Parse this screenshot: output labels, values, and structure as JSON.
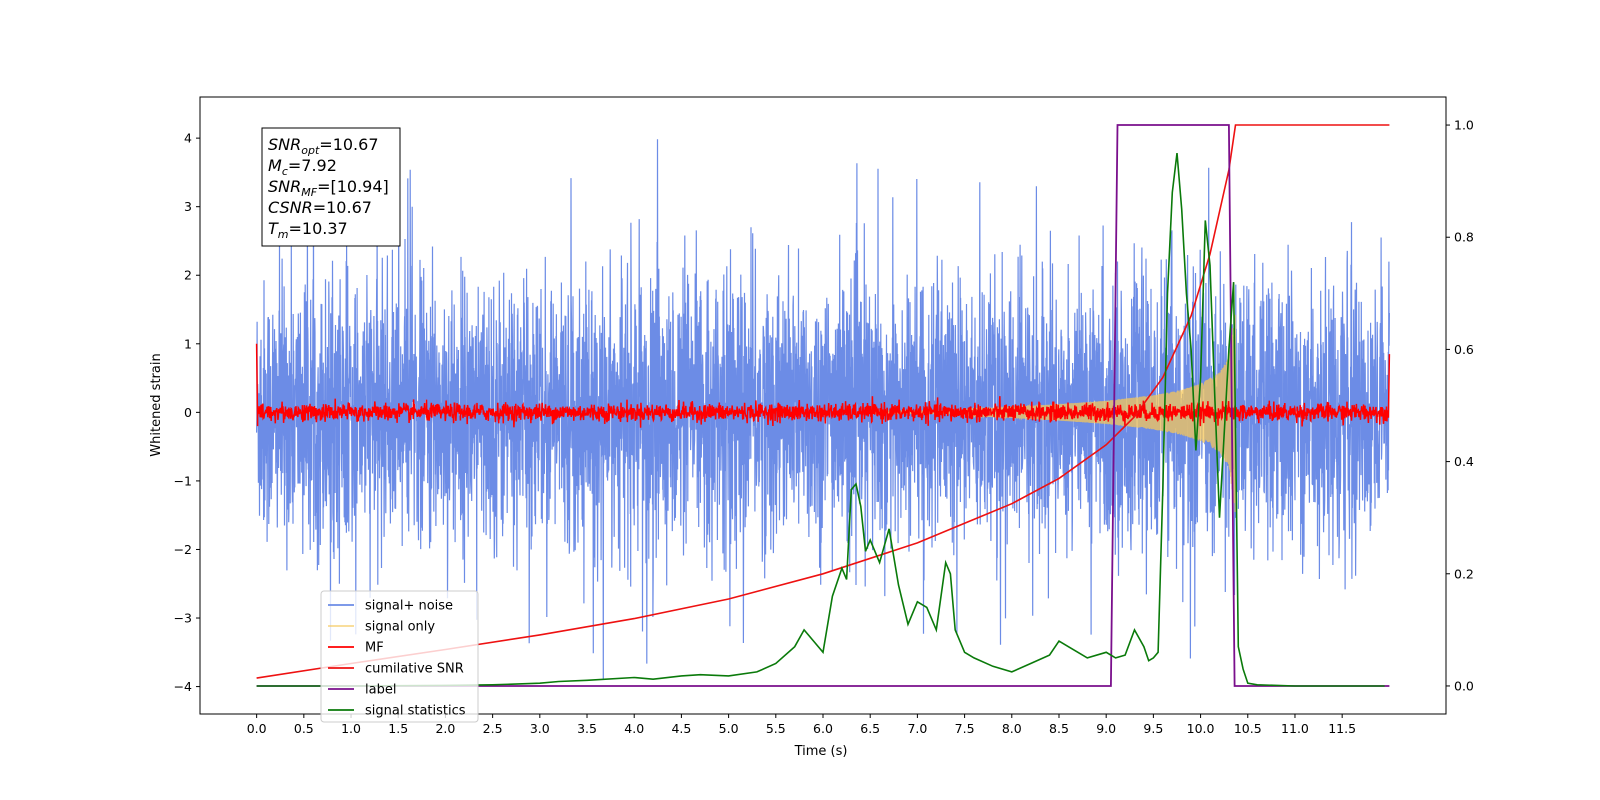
{
  "chart_data": {
    "type": "line",
    "title": "",
    "xlabel": "Time (s)",
    "ylabel": "Whitened strain",
    "xlim": [
      -0.6,
      12.6
    ],
    "ylim": [
      -4.4,
      4.6
    ],
    "y2lim": [
      -0.05,
      1.05
    ],
    "grid": false,
    "x_ticks": [
      "0.0",
      "0.5",
      "1.0",
      "1.5",
      "2.0",
      "2.5",
      "3.0",
      "3.5",
      "4.0",
      "4.5",
      "5.0",
      "5.5",
      "6.0",
      "6.5",
      "7.0",
      "7.5",
      "8.0",
      "8.5",
      "9.0",
      "9.5",
      "10.0",
      "10.5",
      "11.0",
      "11.5"
    ],
    "y_ticks": [
      "4",
      "3",
      "2",
      "1",
      "0",
      "−1",
      "−2",
      "−3",
      "−4"
    ],
    "y2_ticks": [
      "1.0",
      "0.8",
      "0.6",
      "0.4",
      "0.2",
      "0.0"
    ],
    "colors": {
      "signal_noise": "#6c8ce6",
      "signal_only": "#f5c75a",
      "mf": "#ff0000",
      "cumulative_snr": "#ee1111",
      "label": "#7a0f8c",
      "signal_statistics": "#0a7a0a"
    },
    "legend": {
      "placement": "lower-left",
      "entries": [
        "signal+ noise",
        "signal only",
        "MF",
        "cumilative SNR",
        "label",
        "signal statistics"
      ]
    },
    "annotation": {
      "snr_opt": {
        "base": "SNR",
        "sub": "opt",
        "value": "=10.67"
      },
      "mc": {
        "base": "M",
        "sub": "c",
        "value": "=7.92"
      },
      "snr_mf": {
        "base": "SNR",
        "sub": "MF",
        "value": "=[10.94]"
      },
      "csnr": {
        "base": "CSNR",
        "sub": "",
        "value": "=10.67"
      },
      "tm": {
        "base": "T",
        "sub": "m",
        "value": "=10.37"
      }
    },
    "series": [
      {
        "name": "signal+ noise",
        "axis": "left",
        "x_range": [
          0.0,
          12.0
        ],
        "envelope_upper": 2.9,
        "envelope_lower": -2.4,
        "peak_max": 4.1,
        "peak_min": -3.9
      },
      {
        "name": "signal only",
        "axis": "left",
        "x": [
          7.5,
          8.0,
          8.5,
          9.0,
          9.5,
          9.8,
          10.0,
          10.2,
          10.3,
          10.37
        ],
        "amplitude": [
          0.05,
          0.08,
          0.12,
          0.17,
          0.25,
          0.33,
          0.42,
          0.58,
          0.8,
          1.5
        ]
      },
      {
        "name": "MF",
        "axis": "left",
        "x_range": [
          0.0,
          12.0
        ],
        "center": 0.0,
        "amplitude": 0.12,
        "edge_start": [
          1.0,
          -0.2
        ],
        "edge_end": [
          -0.2,
          0.85
        ]
      },
      {
        "name": "cumilative SNR",
        "axis": "right",
        "x": [
          0.0,
          1.0,
          2.0,
          3.0,
          4.0,
          5.0,
          6.0,
          7.0,
          7.5,
          8.0,
          8.5,
          9.0,
          9.3,
          9.6,
          9.9,
          10.1,
          10.3,
          10.37,
          12.0
        ],
        "y": [
          0.014,
          0.04,
          0.065,
          0.091,
          0.12,
          0.155,
          0.2,
          0.255,
          0.29,
          0.325,
          0.37,
          0.43,
          0.48,
          0.55,
          0.66,
          0.77,
          0.92,
          1.0,
          1.0
        ]
      },
      {
        "name": "label",
        "axis": "right",
        "x": [
          0.0,
          9.05,
          9.12,
          10.3,
          10.36,
          12.0
        ],
        "y": [
          0.0,
          0.0,
          1.0,
          1.0,
          0.0,
          0.0
        ]
      },
      {
        "name": "signal statistics",
        "axis": "right",
        "x": [
          0.0,
          1.0,
          2.0,
          2.5,
          3.0,
          3.2,
          3.5,
          4.0,
          4.2,
          4.5,
          4.7,
          5.0,
          5.3,
          5.5,
          5.7,
          5.8,
          5.9,
          6.0,
          6.1,
          6.2,
          6.25,
          6.3,
          6.35,
          6.4,
          6.45,
          6.5,
          6.6,
          6.7,
          6.8,
          6.9,
          7.0,
          7.1,
          7.2,
          7.3,
          7.35,
          7.4,
          7.5,
          7.6,
          7.8,
          8.0,
          8.2,
          8.4,
          8.5,
          8.6,
          8.7,
          8.8,
          9.0,
          9.1,
          9.2,
          9.3,
          9.4,
          9.45,
          9.5,
          9.55,
          9.6,
          9.65,
          9.7,
          9.75,
          9.8,
          9.85,
          9.9,
          9.95,
          10.0,
          10.05,
          10.1,
          10.15,
          10.2,
          10.25,
          10.3,
          10.35,
          10.4,
          10.45,
          10.5,
          10.6,
          11.0,
          11.5,
          11.95
        ],
        "y": [
          0.0,
          0.0,
          0.001,
          0.002,
          0.005,
          0.008,
          0.01,
          0.015,
          0.012,
          0.018,
          0.02,
          0.018,
          0.025,
          0.04,
          0.07,
          0.1,
          0.08,
          0.06,
          0.16,
          0.21,
          0.19,
          0.35,
          0.36,
          0.32,
          0.24,
          0.26,
          0.22,
          0.28,
          0.18,
          0.11,
          0.15,
          0.14,
          0.1,
          0.22,
          0.2,
          0.1,
          0.06,
          0.05,
          0.035,
          0.025,
          0.04,
          0.055,
          0.08,
          0.07,
          0.06,
          0.05,
          0.06,
          0.05,
          0.055,
          0.1,
          0.07,
          0.045,
          0.05,
          0.06,
          0.35,
          0.7,
          0.88,
          0.95,
          0.85,
          0.7,
          0.6,
          0.42,
          0.55,
          0.83,
          0.75,
          0.52,
          0.3,
          0.45,
          0.6,
          0.72,
          0.07,
          0.03,
          0.005,
          0.002,
          0.0,
          0.0,
          0.0
        ]
      }
    ]
  }
}
